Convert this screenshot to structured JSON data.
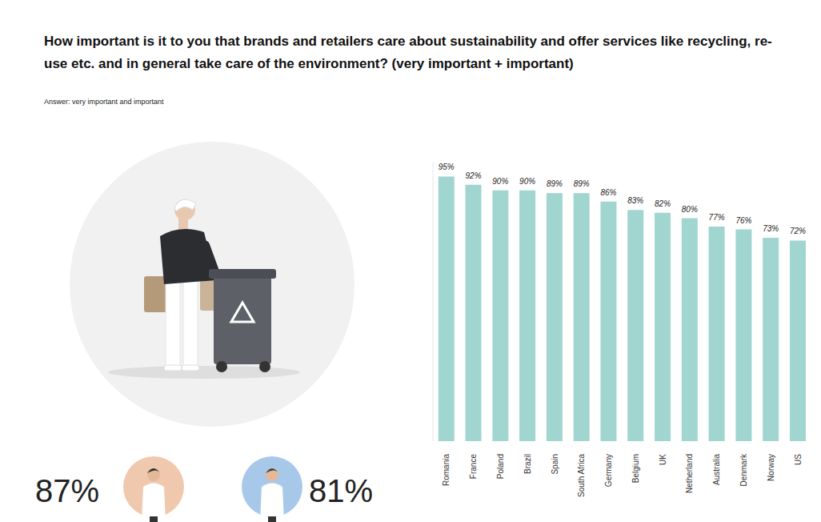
{
  "chart_data": {
    "type": "bar",
    "title": "How important is it to you that brands and retailers care about sustainability and offer services like recycling, re-use etc. and in general take care of the environment? (very important + important)",
    "subtitle": "Answer: very important and important",
    "categories": [
      "Romania",
      "France",
      "Poland",
      "Brazil",
      "Spain",
      "South Africa",
      "Germany",
      "Belgium",
      "UK",
      "Netherland",
      "Australia",
      "Denmark",
      "Norway",
      "US"
    ],
    "values": [
      95,
      92,
      90,
      90,
      89,
      89,
      86,
      83,
      82,
      80,
      77,
      76,
      73,
      72
    ],
    "value_labels": [
      "95%",
      "92%",
      "90%",
      "90%",
      "89%",
      "89%",
      "86%",
      "83%",
      "82%",
      "80%",
      "77%",
      "76%",
      "73%",
      "72%"
    ],
    "color": "#a0d5d0",
    "ylim": [
      0,
      100
    ],
    "data_labels": true,
    "tick_labels": "x",
    "grid": false,
    "annotations": [
      "87%",
      "81%"
    ]
  }
}
